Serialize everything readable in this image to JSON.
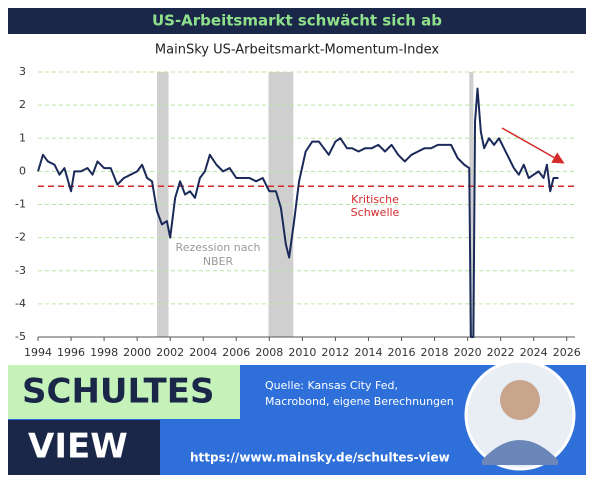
{
  "header": {
    "title": "US-Arbeitsmarkt schwächt sich ab"
  },
  "chart_data": {
    "type": "line",
    "title": "MainSky US-Arbeitsmarkt-Momentum-Index",
    "x": [
      1994.0,
      1994.3,
      1994.6,
      1995.0,
      1995.3,
      1995.6,
      1996.0,
      1996.2,
      1996.6,
      1997.0,
      1997.3,
      1997.6,
      1998.0,
      1998.4,
      1998.8,
      1999.2,
      1999.6,
      2000.0,
      2000.3,
      2000.6,
      2000.9,
      2001.2,
      2001.5,
      2001.8,
      2002.0,
      2002.3,
      2002.6,
      2002.9,
      2003.2,
      2003.5,
      2003.8,
      2004.1,
      2004.4,
      2004.8,
      2005.2,
      2005.6,
      2006.0,
      2006.4,
      2006.8,
      2007.2,
      2007.6,
      2008.0,
      2008.4,
      2008.7,
      2009.0,
      2009.2,
      2009.5,
      2009.8,
      2010.2,
      2010.6,
      2011.0,
      2011.3,
      2011.6,
      2012.0,
      2012.3,
      2012.7,
      2013.0,
      2013.4,
      2013.8,
      2014.2,
      2014.6,
      2015.0,
      2015.4,
      2015.8,
      2016.2,
      2016.6,
      2017.0,
      2017.4,
      2017.8,
      2018.2,
      2018.6,
      2019.0,
      2019.4,
      2019.8,
      2020.1,
      2020.2,
      2020.35,
      2020.45,
      2020.6,
      2020.8,
      2021.0,
      2021.3,
      2021.6,
      2021.9,
      2022.2,
      2022.5,
      2022.8,
      2023.1,
      2023.4,
      2023.7,
      2024.0,
      2024.3,
      2024.6,
      2024.8,
      2025.0,
      2025.2,
      2025.5
    ],
    "series": [
      {
        "name": "MainSky US-Arbeitsmarkt-Momentum-Index",
        "color": "#1c2a5a",
        "values": [
          0.0,
          0.5,
          0.3,
          0.2,
          -0.1,
          0.1,
          -0.6,
          0.0,
          0.0,
          0.1,
          -0.1,
          0.3,
          0.1,
          0.1,
          -0.4,
          -0.2,
          -0.1,
          0.0,
          0.2,
          -0.2,
          -0.3,
          -1.2,
          -1.6,
          -1.5,
          -2.0,
          -0.8,
          -0.3,
          -0.7,
          -0.6,
          -0.8,
          -0.2,
          0.0,
          0.5,
          0.2,
          0.0,
          0.1,
          -0.2,
          -0.2,
          -0.2,
          -0.3,
          -0.2,
          -0.6,
          -0.6,
          -1.1,
          -2.2,
          -2.6,
          -1.5,
          -0.3,
          0.6,
          0.9,
          0.9,
          0.7,
          0.5,
          0.9,
          1.0,
          0.7,
          0.7,
          0.6,
          0.7,
          0.7,
          0.8,
          0.6,
          0.8,
          0.5,
          0.3,
          0.5,
          0.6,
          0.7,
          0.7,
          0.8,
          0.8,
          0.8,
          0.4,
          0.2,
          0.1,
          -5.0,
          -5.0,
          1.5,
          2.5,
          1.2,
          0.7,
          1.0,
          0.8,
          1.0,
          0.7,
          0.4,
          0.1,
          -0.1,
          0.2,
          -0.2,
          -0.1,
          0.0,
          -0.2,
          0.2,
          -0.6,
          -0.2,
          -0.2
        ]
      }
    ],
    "xlim": [
      1994,
      2026.5
    ],
    "xticks": [
      1994,
      1996,
      1998,
      2000,
      2002,
      2004,
      2006,
      2008,
      2010,
      2012,
      2014,
      2016,
      2018,
      2020,
      2022,
      2024,
      2026
    ],
    "ylim": [
      -5,
      3
    ],
    "yticks": [
      3,
      2,
      1,
      0,
      -1,
      -2,
      -3,
      -4,
      -5
    ],
    "grid": true,
    "grid_color": "#b9e6a3",
    "threshold": {
      "value": -0.45,
      "color": "#d42a2a",
      "label": [
        "Kritische",
        "Schwelle"
      ]
    },
    "recessions": {
      "spans": [
        [
          2001.2,
          2001.9
        ],
        [
          2007.95,
          2009.45
        ],
        [
          2020.1,
          2020.35
        ]
      ],
      "color": "#cfcfcf",
      "label": [
        "Rezession nach",
        "NBER"
      ]
    }
  },
  "footer": {
    "brand": [
      "SCHULTES",
      "VIEW"
    ],
    "source": [
      "Quelle: Kansas City Fed,",
      "Macrobond, eigene Berechnungen"
    ],
    "url": "https://www.mainsky.de/schultes-view"
  }
}
